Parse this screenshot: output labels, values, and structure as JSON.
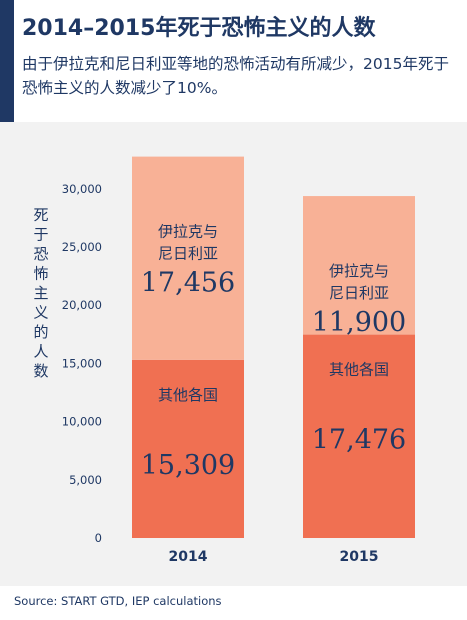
{
  "title": "2014–2015年死于恐怖主义的人数",
  "subtitle": "由于伊拉克和尼日利亚等地的恐怖活动有所减少，2015年死于恐怖主义的人数减少了10%。",
  "source": "Source: START GTD, IEP calculations",
  "colors": {
    "accent": "#1f3864",
    "text": "#1f3864",
    "panel": "#f2f2f2",
    "iraq_nigeria": "#f8b196",
    "other": "#f07052"
  },
  "chart_data": {
    "type": "bar",
    "stacked": true,
    "categories": [
      "2014",
      "2015"
    ],
    "ylabel": "死于恐怖主义的人数",
    "ylim": [
      0,
      32793
    ],
    "yticks": [
      0,
      5000,
      10000,
      15000,
      20000,
      25000,
      30000
    ],
    "ytick_labels": [
      "0",
      "5,000",
      "10,000",
      "15,000",
      "20,000",
      "25,000",
      "30,000"
    ],
    "grid": false,
    "legend": "none",
    "series": [
      {
        "name": "其他各国",
        "values": [
          15309,
          17476
        ],
        "value_labels": [
          "15,309",
          "17,476"
        ]
      },
      {
        "name": "伊拉克与尼日利亚",
        "label_lines": [
          "伊拉克与",
          "尼日利亚"
        ],
        "values": [
          17456,
          11900
        ],
        "value_labels": [
          "17,456",
          "11,900"
        ]
      }
    ]
  }
}
